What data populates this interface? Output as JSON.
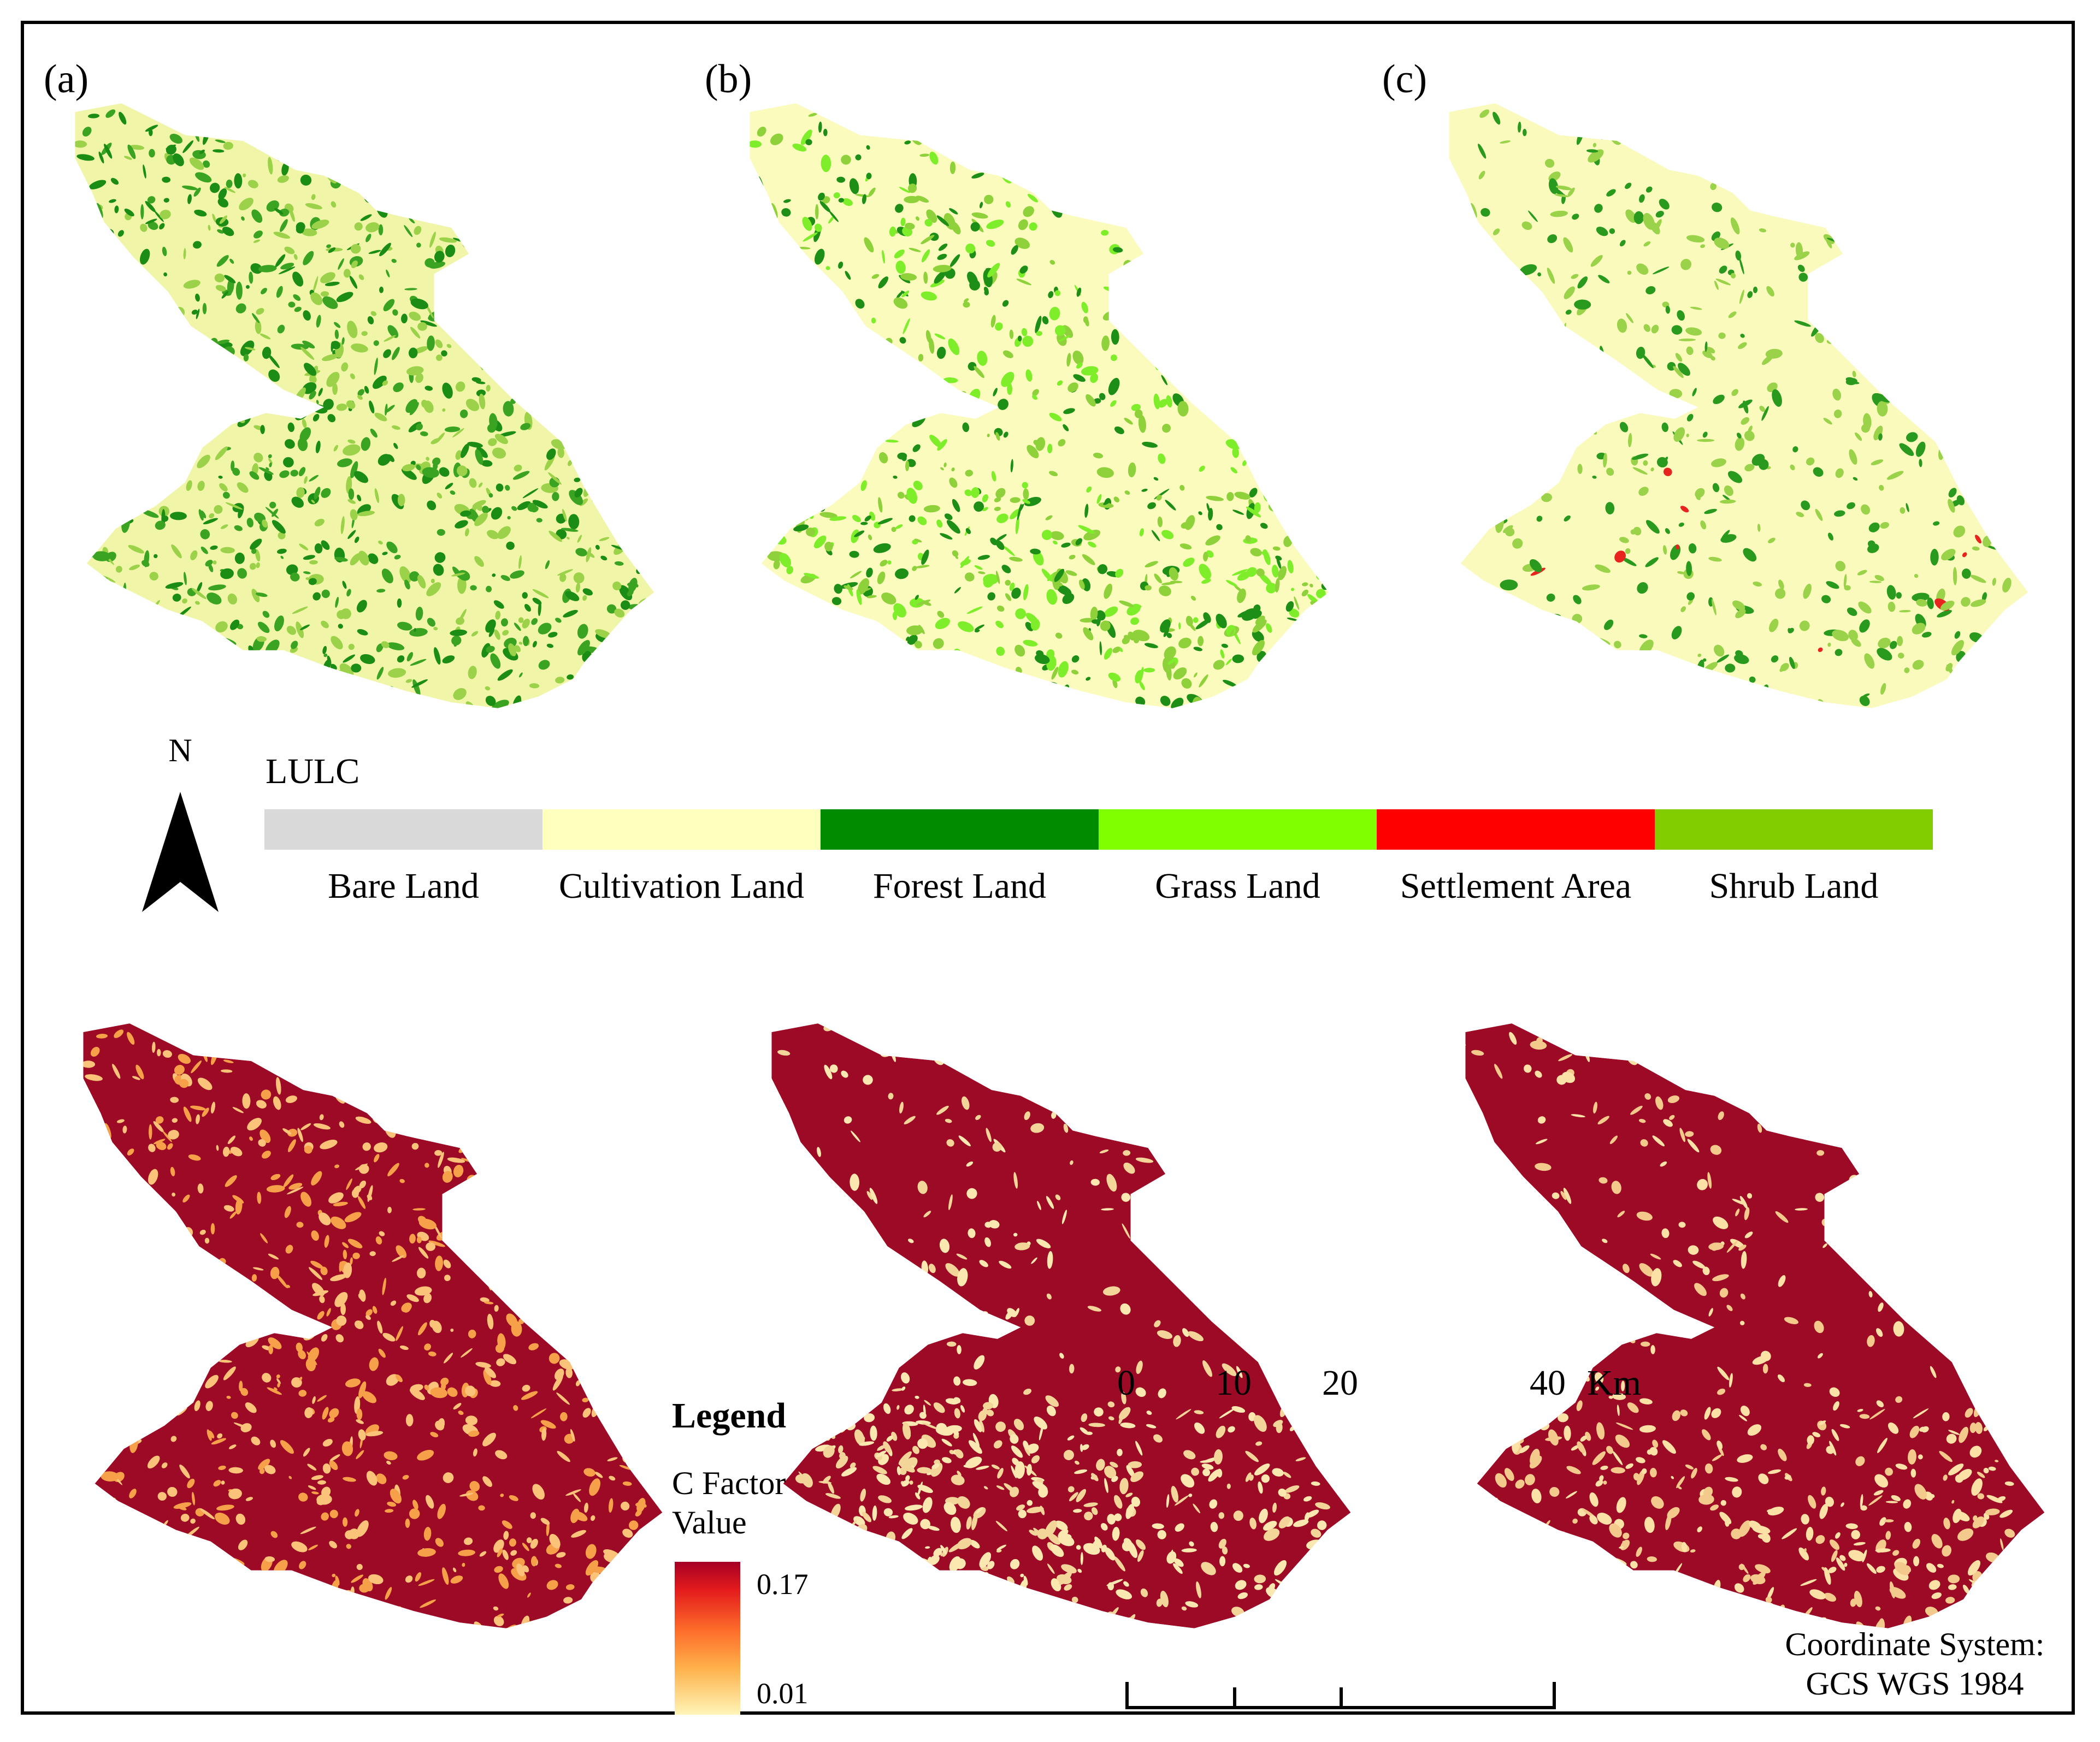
{
  "panels": [
    {
      "label": "(a)"
    },
    {
      "label": "(b)"
    },
    {
      "label": "(c)"
    }
  ],
  "lulc_legend": {
    "title": "LULC",
    "classes": [
      {
        "name": "Bare Land",
        "color": "#d9d9d9"
      },
      {
        "name": "Cultivation Land",
        "color": "#ffffbe"
      },
      {
        "name": "Forest Land",
        "color": "#008c00"
      },
      {
        "name": "Grass Land",
        "color": "#7fff00"
      },
      {
        "name": "Settlement Area",
        "color": "#ff0000"
      },
      {
        "name": "Shrub Land",
        "color": "#82cd00"
      }
    ]
  },
  "north_arrow": {
    "letter": "N"
  },
  "c_factor_legend": {
    "title": "Legend",
    "subtitle_line1": "C Factor",
    "subtitle_line2": "Value",
    "max_label": "0.17",
    "min_label": "0.01",
    "colors": [
      "#a50026",
      "#e31a1c",
      "#fd6d2a",
      "#feb24c",
      "#fff5b8"
    ]
  },
  "scale_bar": {
    "ticks": [
      "0",
      "10",
      "20",
      "40"
    ],
    "unit": "Km"
  },
  "coordinate_system": {
    "line1": "Coordinate System:",
    "line2": "GCS WGS 1984"
  },
  "map_colors": {
    "lulc_a": {
      "base": "#f0f5a8",
      "patch1": "#3aa322",
      "patch2": "#1b8c14",
      "patch3": "#9bd24a"
    },
    "lulc_b": {
      "base": "#fbfbbd",
      "patch1": "#8fd13a",
      "patch2": "#1e8f16",
      "patch3": "#7fee2a"
    },
    "lulc_c": {
      "base": "#fafabd",
      "patch1": "#9ad24a",
      "patch2": "#2a9a1e",
      "patch3": "#e8241e"
    },
    "cf_a": {
      "base": "#9c0a26",
      "patch1": "#f6a04a",
      "patch2": "#fbc37a"
    },
    "cf_b": {
      "base": "#9c0a26",
      "patch1": "#fbe8b0",
      "patch2": "#f3d59a"
    },
    "cf_c": {
      "base": "#9c0a26",
      "patch1": "#fbe1a6",
      "patch2": "#f4c98c"
    }
  }
}
